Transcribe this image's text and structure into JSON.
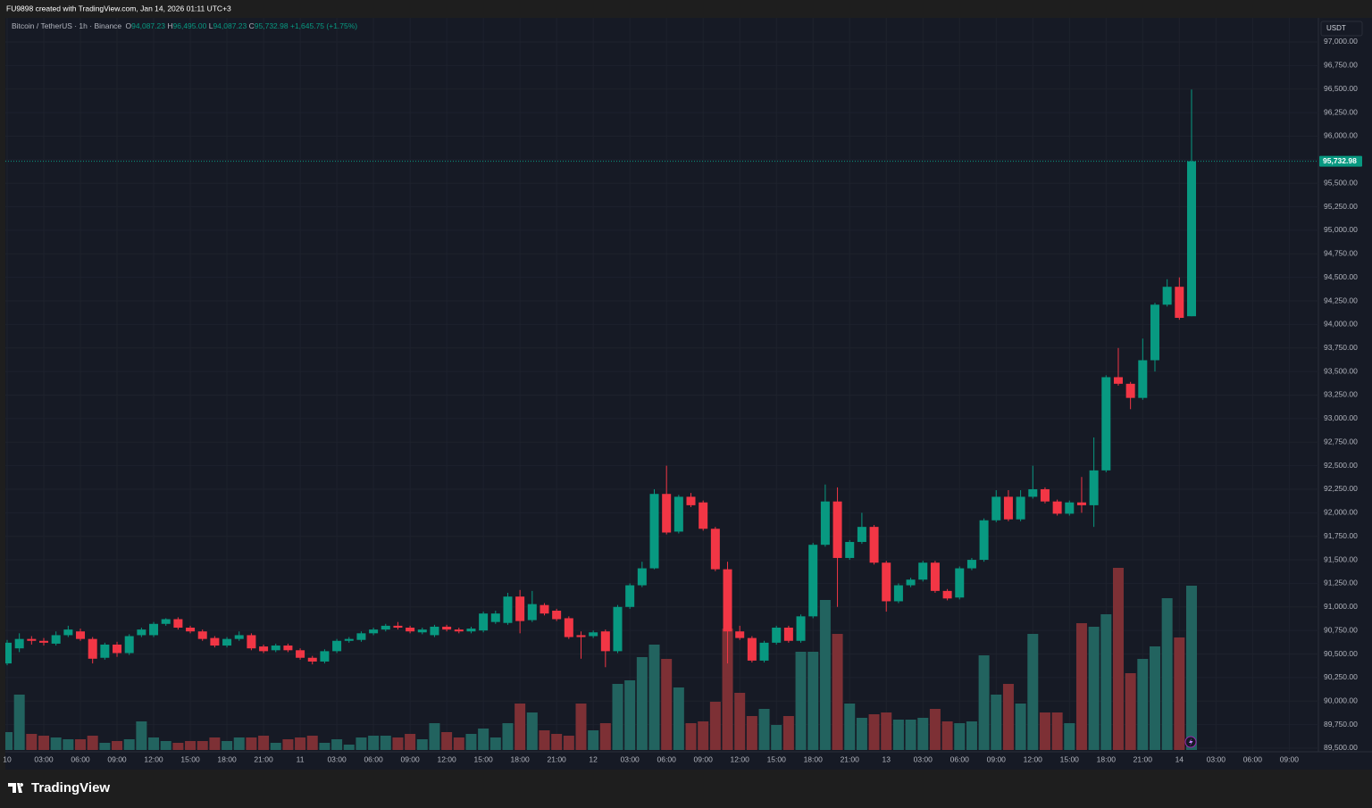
{
  "header": {
    "caption": "FU9898 created with TradingView.com, Jan 14, 2026 01:11 UTC+3"
  },
  "legend": {
    "symbol": "Bitcoin / TetherUS · 1h · Binance",
    "fields": [
      {
        "key": "O",
        "value": "94,087.23"
      },
      {
        "key": "H",
        "value": "96,495.00"
      },
      {
        "key": "L",
        "value": "94,087.23"
      },
      {
        "key": "C",
        "value": "95,732.98"
      }
    ],
    "change": "+1,645.75 (+1.75%)"
  },
  "footer": {
    "brand": "TradingView"
  },
  "chart_data": {
    "type": "candlestick",
    "currency": "USDT",
    "last_price_label": "95,732.98",
    "up_color": "#089981",
    "down_color": "#f23645",
    "volume_up_color": "#22635f",
    "volume_down_color": "#7d3035",
    "grid": true,
    "categories": [
      "10",
      null,
      null,
      "03:00",
      null,
      null,
      "06:00",
      null,
      null,
      "09:00",
      null,
      null,
      "12:00",
      null,
      null,
      "15:00",
      null,
      null,
      "18:00",
      null,
      null,
      "21:00",
      null,
      null,
      "11",
      null,
      null,
      "03:00",
      null,
      null,
      "06:00",
      null,
      null,
      "09:00",
      null,
      null,
      "12:00",
      null,
      null,
      "15:00",
      null,
      null,
      "18:00",
      null,
      null,
      "21:00",
      null,
      null,
      "12",
      null,
      null,
      "03:00",
      null,
      null,
      "06:00",
      null,
      null,
      "09:00",
      null,
      null,
      "12:00",
      null,
      null,
      "15:00",
      null,
      null,
      "18:00",
      null,
      null,
      "21:00",
      null,
      null,
      "13",
      null,
      null,
      "03:00",
      null,
      null,
      "06:00",
      null,
      null,
      "09:00",
      null,
      null,
      "12:00",
      null,
      null,
      "15:00",
      null,
      null,
      "18:00",
      null,
      null,
      "21:00",
      null,
      null,
      "14",
      null,
      null,
      "03:00",
      null,
      null,
      "06:00",
      null,
      null,
      "09:00"
    ],
    "open": [
      90400,
      90560,
      90660,
      90640,
      90610,
      90700,
      90740,
      90660,
      90460,
      90600,
      90510,
      90700,
      90700,
      90820,
      90870,
      90780,
      90740,
      90670,
      90590,
      90660,
      90700,
      90580,
      90540,
      90590,
      90540,
      90460,
      90420,
      90530,
      90640,
      90650,
      90720,
      90760,
      90800,
      90780,
      90730,
      90700,
      90790,
      90760,
      90740,
      90750,
      90840,
      90830,
      91110,
      90860,
      91020,
      90960,
      90880,
      90700,
      90690,
      90740,
      90530,
      91000,
      91230,
      91410,
      92200,
      91800,
      92170,
      92110,
      91830,
      91400,
      90740,
      90670,
      90430,
      90620,
      90780,
      90640,
      90900,
      91660,
      92120,
      91520,
      91690,
      91850,
      91470,
      91060,
      91230,
      91290,
      91470,
      91170,
      91100,
      91410,
      91500,
      91920,
      92170,
      91930,
      92170,
      92250,
      92120,
      91990,
      92110,
      92080,
      92450,
      93440,
      93370,
      93220,
      93620,
      94210,
      94400,
      94087.23,
      null,
      null,
      null,
      null,
      null,
      null,
      null,
      null
    ],
    "high": [
      90650,
      90720,
      90690,
      90670,
      90740,
      90800,
      90770,
      90680,
      90620,
      90630,
      90710,
      90780,
      90840,
      90880,
      90890,
      90800,
      90760,
      90690,
      90680,
      90740,
      90720,
      90600,
      90610,
      90610,
      90560,
      90480,
      90550,
      90660,
      90680,
      90740,
      90780,
      90820,
      90840,
      90800,
      90780,
      90810,
      90810,
      90780,
      90790,
      90950,
      90960,
      91150,
      91180,
      91170,
      91040,
      90980,
      90900,
      90740,
      90750,
      90760,
      91020,
      91250,
      91480,
      92250,
      92500,
      92190,
      92210,
      92130,
      91850,
      91480,
      90800,
      90690,
      90640,
      90800,
      90800,
      90920,
      91680,
      92300,
      92270,
      91710,
      92000,
      91870,
      91490,
      91250,
      91310,
      91490,
      91490,
      91190,
      91430,
      91520,
      91940,
      92240,
      92240,
      92240,
      92500,
      92270,
      92140,
      92130,
      92380,
      92800,
      93460,
      93750,
      93390,
      93850,
      94230,
      94480,
      94500,
      96495,
      null,
      null,
      null,
      null,
      null,
      null,
      null,
      null
    ],
    "low": [
      90380,
      90520,
      90600,
      90590,
      90590,
      90680,
      90640,
      90400,
      90440,
      90470,
      90490,
      90680,
      90680,
      90800,
      90760,
      90720,
      90640,
      90570,
      90570,
      90640,
      90540,
      90510,
      90520,
      90520,
      90440,
      90390,
      90400,
      90510,
      90620,
      90630,
      90700,
      90740,
      90760,
      90720,
      90710,
      90680,
      90740,
      90720,
      90720,
      90730,
      90820,
      90810,
      90720,
      90840,
      90910,
      90850,
      90660,
      90450,
      90670,
      90360,
      90510,
      90980,
      91210,
      91400,
      91770,
      91780,
      92060,
      91810,
      91380,
      90400,
      90650,
      90410,
      90410,
      90600,
      90620,
      90620,
      90880,
      91640,
      91000,
      91500,
      91670,
      91450,
      90950,
      91040,
      91210,
      91270,
      91150,
      91070,
      91080,
      91390,
      91480,
      91900,
      91910,
      91910,
      92150,
      92100,
      91970,
      91970,
      92000,
      91850,
      92430,
      93350,
      93100,
      93200,
      93500,
      94190,
      94050,
      94087.23,
      null,
      null,
      null,
      null,
      null,
      null,
      null,
      null
    ],
    "close": [
      90620,
      90660,
      90640,
      90620,
      90700,
      90760,
      90660,
      90450,
      90600,
      90510,
      90690,
      90760,
      90820,
      90870,
      90780,
      90740,
      90660,
      90590,
      90660,
      90700,
      90560,
      90530,
      90590,
      90540,
      90460,
      90420,
      90530,
      90640,
      90660,
      90720,
      90760,
      90800,
      90780,
      90740,
      90760,
      90790,
      90760,
      90740,
      90770,
      90930,
      90930,
      91110,
      90850,
      91030,
      90930,
      90870,
      90680,
      90680,
      90730,
      90530,
      91000,
      91230,
      91410,
      92200,
      91790,
      92170,
      92080,
      91830,
      91400,
      90740,
      90670,
      90430,
      90620,
      90780,
      90640,
      90900,
      91660,
      92120,
      91520,
      91690,
      91850,
      91470,
      91060,
      91230,
      91290,
      91470,
      91170,
      91090,
      91410,
      91500,
      91920,
      92170,
      91930,
      92170,
      92250,
      92120,
      91990,
      92110,
      92080,
      92450,
      93440,
      93370,
      93220,
      93620,
      94210,
      94400,
      94070,
      95732.98,
      null,
      null,
      null,
      null,
      null,
      null,
      null,
      null
    ],
    "volume": [
      100,
      310,
      90,
      80,
      70,
      60,
      60,
      80,
      40,
      50,
      60,
      160,
      70,
      50,
      40,
      50,
      50,
      70,
      50,
      70,
      70,
      80,
      40,
      60,
      70,
      80,
      40,
      60,
      30,
      70,
      80,
      80,
      70,
      90,
      60,
      150,
      100,
      70,
      90,
      120,
      70,
      150,
      260,
      210,
      110,
      90,
      80,
      260,
      110,
      150,
      370,
      390,
      520,
      590,
      510,
      350,
      150,
      160,
      270,
      680,
      320,
      190,
      230,
      140,
      190,
      550,
      550,
      840,
      650,
      260,
      180,
      200,
      210,
      170,
      170,
      180,
      230,
      160,
      150,
      160,
      530,
      310,
      370,
      260,
      650,
      210,
      210,
      150,
      710,
      690,
      760,
      1020,
      430,
      510,
      580,
      850,
      630,
      920,
      null,
      null,
      null,
      null,
      null,
      null,
      null,
      null
    ],
    "volume_lim": [
      0,
      1300
    ],
    "ylim": [
      89462,
      97256
    ],
    "yticks": [
      {
        "value": 89500,
        "label": "89,500.00"
      },
      {
        "value": 89750,
        "label": "89,750.00"
      },
      {
        "value": 90000,
        "label": "90,000.00"
      },
      {
        "value": 90250,
        "label": "90,250.00"
      },
      {
        "value": 90500,
        "label": "90,500.00"
      },
      {
        "value": 90750,
        "label": "90,750.00"
      },
      {
        "value": 91000,
        "label": "91,000.00"
      },
      {
        "value": 91250,
        "label": "91,250.00"
      },
      {
        "value": 91500,
        "label": "91,500.00"
      },
      {
        "value": 91750,
        "label": "91,750.00"
      },
      {
        "value": 92000,
        "label": "92,000.00"
      },
      {
        "value": 92250,
        "label": "92,250.00"
      },
      {
        "value": 92500,
        "label": "92,500.00"
      },
      {
        "value": 92750,
        "label": "92,750.00"
      },
      {
        "value": 93000,
        "label": "93,000.00"
      },
      {
        "value": 93250,
        "label": "93,250.00"
      },
      {
        "value": 93500,
        "label": "93,500.00"
      },
      {
        "value": 93750,
        "label": "93,750.00"
      },
      {
        "value": 94000,
        "label": "94,000.00"
      },
      {
        "value": 94250,
        "label": "94,250.00"
      },
      {
        "value": 94500,
        "label": "94,500.00"
      },
      {
        "value": 94750,
        "label": "94,750.00"
      },
      {
        "value": 95000,
        "label": "95,000.00"
      },
      {
        "value": 95250,
        "label": "95,250.00"
      },
      {
        "value": 95500,
        "label": "95,500.00"
      },
      {
        "value": 95750,
        "label": "95,750.00"
      },
      {
        "value": 96000,
        "label": "96,000.00"
      },
      {
        "value": 96250,
        "label": "96,250.00"
      },
      {
        "value": 96500,
        "label": "96,500.00"
      },
      {
        "value": 96750,
        "label": "96,750.00"
      },
      {
        "value": 97000,
        "label": "97,000.00"
      }
    ]
  }
}
